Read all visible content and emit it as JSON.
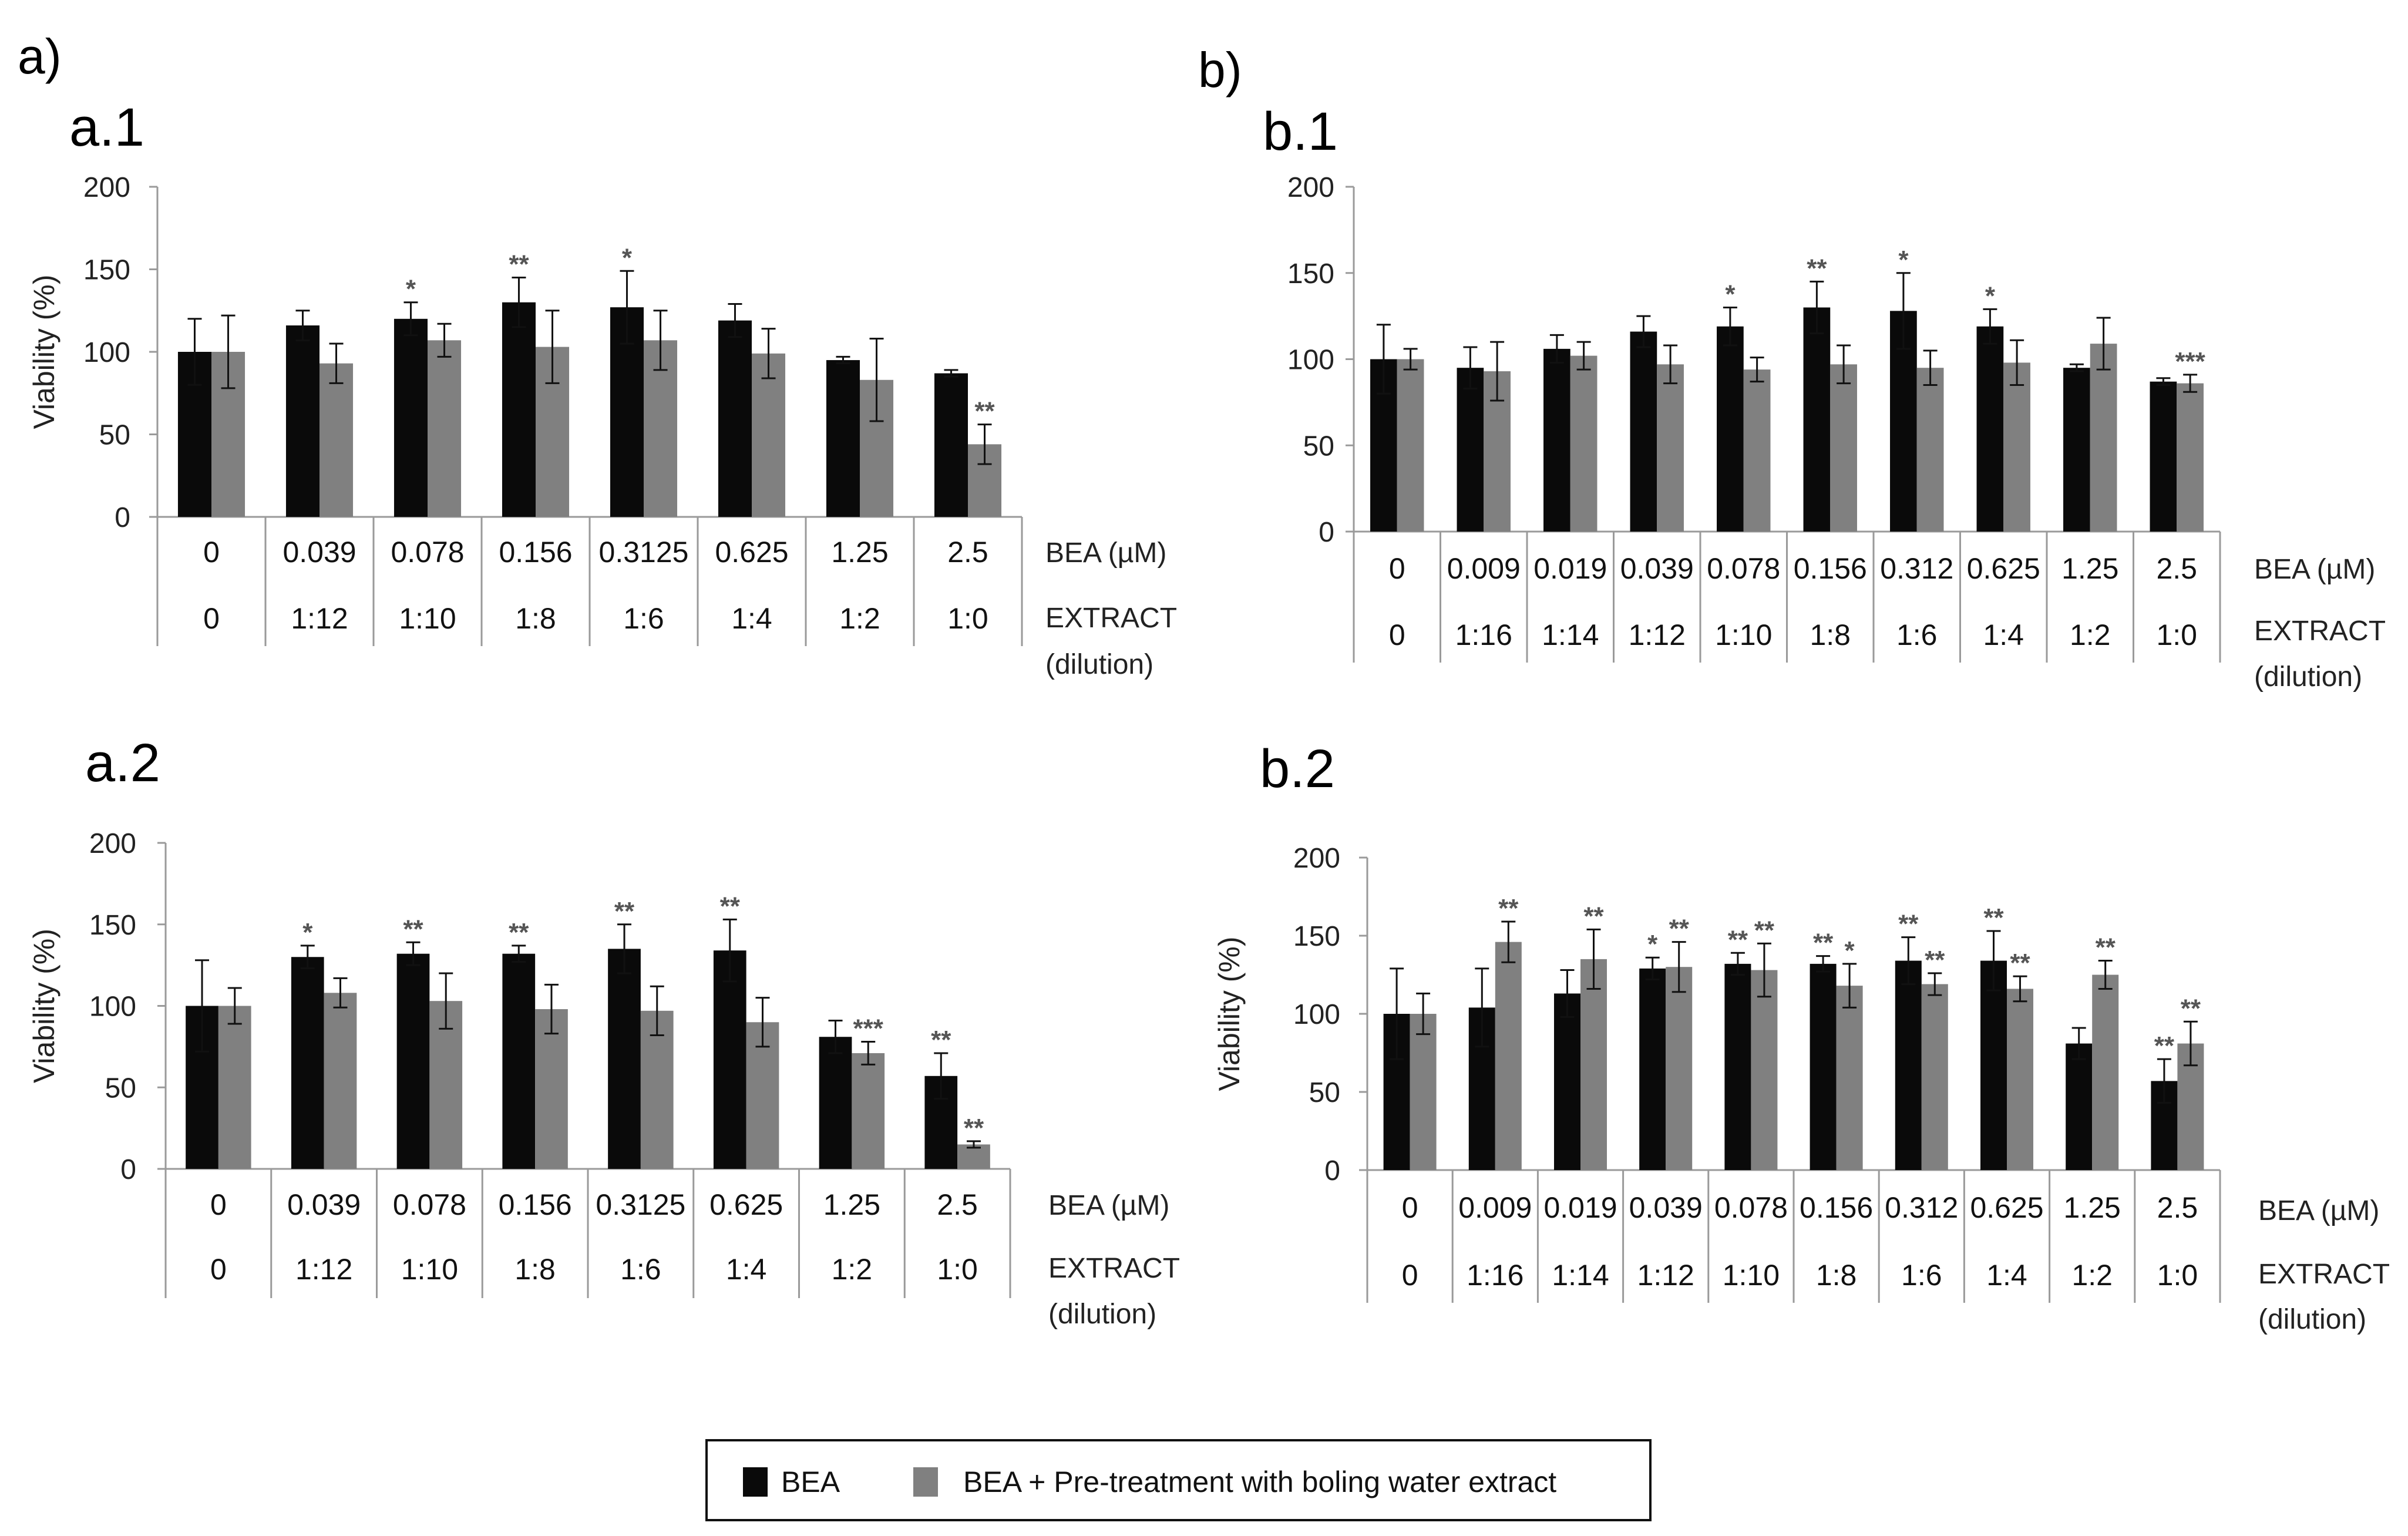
{
  "panels": {
    "a": "a)",
    "b": "b)"
  },
  "legend": {
    "bea": "BEA",
    "pretreat": "BEA + Pre-treatment with boling water extract"
  },
  "colors": {
    "bea": "#0a0a0a",
    "pretreat": "#808080",
    "axis": "#9a9a9a",
    "star": "#555555"
  },
  "chart_data": [
    {
      "id": "a1",
      "type": "bar",
      "title": "a.1",
      "ylabel": "Viability (%)",
      "ylim": [
        0,
        200
      ],
      "yticks": [
        0,
        50,
        100,
        150,
        200
      ],
      "row1_label": "BEA (µM)",
      "row2_label": "EXTRACT",
      "row2_label_b": "(dilution)",
      "categories": [
        "0",
        "0.039",
        "0.078",
        "0.156",
        "0.3125",
        "0.625",
        "1.25",
        "2.5"
      ],
      "extract": [
        "0",
        "1:12",
        "1:10",
        "1:8",
        "1:6",
        "1:4",
        "1:2",
        "1:0"
      ],
      "series": [
        {
          "name": "BEA",
          "values": [
            100,
            116,
            120,
            130,
            127,
            119,
            95,
            87
          ],
          "errors": [
            20,
            9,
            10,
            15,
            22,
            10,
            2,
            2
          ],
          "stars": [
            "",
            "",
            "*",
            "**",
            "*",
            "",
            "",
            ""
          ]
        },
        {
          "name": "BEA + Pre-treatment with boling water extract",
          "values": [
            100,
            93,
            107,
            103,
            107,
            99,
            83,
            44
          ],
          "errors": [
            22,
            12,
            10,
            22,
            18,
            15,
            25,
            12
          ],
          "stars": [
            "",
            "",
            "",
            "",
            "",
            "",
            "",
            "**"
          ]
        }
      ]
    },
    {
      "id": "b1",
      "type": "bar",
      "title": "b.1",
      "ylabel": "",
      "ylim": [
        0,
        200
      ],
      "yticks": [
        0,
        50,
        100,
        150,
        200
      ],
      "row1_label": "BEA (µM)",
      "row2_label": "EXTRACT",
      "row2_label_b": "(dilution)",
      "categories": [
        "0",
        "0.009",
        "0.019",
        "0.039",
        "0.078",
        "0.156",
        "0.312",
        "0.625",
        "1.25",
        "2.5"
      ],
      "extract": [
        "0",
        "1:16",
        "1:14",
        "1:12",
        "1:10",
        "1:8",
        "1:6",
        "1:4",
        "1:2",
        "1:0"
      ],
      "series": [
        {
          "name": "BEA",
          "values": [
            100,
            95,
            106,
            116,
            119,
            130,
            128,
            119,
            95,
            87
          ],
          "errors": [
            20,
            12,
            8,
            9,
            11,
            15,
            22,
            10,
            2,
            2
          ],
          "stars": [
            "",
            "",
            "",
            "",
            "*",
            "**",
            "*",
            "*",
            "",
            ""
          ]
        },
        {
          "name": "BEA + Pre-treatment with boling water extract",
          "values": [
            100,
            93,
            102,
            97,
            94,
            97,
            95,
            98,
            109,
            86
          ],
          "errors": [
            6,
            17,
            8,
            11,
            7,
            11,
            10,
            13,
            15,
            5
          ],
          "stars": [
            "",
            "",
            "",
            "",
            "",
            "",
            "",
            "",
            "",
            "***"
          ]
        }
      ]
    },
    {
      "id": "a2",
      "type": "bar",
      "title": "a.2",
      "ylabel": "Viability (%)",
      "ylim": [
        0,
        200
      ],
      "yticks": [
        0,
        50,
        100,
        150,
        200
      ],
      "row1_label": "BEA (µM)",
      "row2_label": "EXTRACT",
      "row2_label_b": "(dilution)",
      "categories": [
        "0",
        "0.039",
        "0.078",
        "0.156",
        "0.3125",
        "0.625",
        "1.25",
        "2.5"
      ],
      "extract": [
        "0",
        "1:12",
        "1:10",
        "1:8",
        "1:6",
        "1:4",
        "1:2",
        "1:0"
      ],
      "series": [
        {
          "name": "BEA",
          "values": [
            100,
            130,
            132,
            132,
            135,
            134,
            81,
            57
          ],
          "errors": [
            28,
            7,
            7,
            5,
            15,
            19,
            10,
            14
          ],
          "stars": [
            "",
            "*",
            "**",
            "**",
            "**",
            "**",
            "",
            "**"
          ]
        },
        {
          "name": "BEA + Pre-treatment with boling water extract",
          "values": [
            100,
            108,
            103,
            98,
            97,
            90,
            71,
            15
          ],
          "errors": [
            11,
            9,
            17,
            15,
            15,
            15,
            7,
            2
          ],
          "stars": [
            "",
            "",
            "",
            "",
            "",
            "",
            "***",
            "**"
          ]
        }
      ]
    },
    {
      "id": "b2",
      "type": "bar",
      "title": "b.2",
      "ylabel": "Viability (%)",
      "ylim": [
        0,
        200
      ],
      "yticks": [
        0,
        50,
        100,
        150,
        200
      ],
      "row1_label": "BEA (µM)",
      "row2_label": "EXTRACT",
      "row2_label_b": "(dilution)",
      "categories": [
        "0",
        "0.009",
        "0.019",
        "0.039",
        "0.078",
        "0.156",
        "0.312",
        "0.625",
        "1.25",
        "2.5"
      ],
      "extract": [
        "0",
        "1:16",
        "1:14",
        "1:12",
        "1:10",
        "1:8",
        "1:6",
        "1:4",
        "1:2",
        "1:0"
      ],
      "series": [
        {
          "name": "BEA",
          "values": [
            100,
            104,
            113,
            129,
            132,
            132,
            134,
            134,
            81,
            57
          ],
          "errors": [
            29,
            25,
            15,
            7,
            7,
            5,
            15,
            19,
            10,
            14
          ],
          "stars": [
            "",
            "",
            "",
            "*",
            "**",
            "**",
            "**",
            "**",
            "",
            "**"
          ]
        },
        {
          "name": "BEA + Pre-treatment with boling water extract",
          "values": [
            100,
            146,
            135,
            130,
            128,
            118,
            119,
            116,
            125,
            81
          ],
          "errors": [
            13,
            13,
            19,
            16,
            17,
            14,
            7,
            8,
            9,
            14
          ],
          "stars": [
            "",
            "**",
            "**",
            "**",
            "**",
            "*",
            "**",
            "**",
            "**",
            "**"
          ]
        }
      ]
    }
  ]
}
